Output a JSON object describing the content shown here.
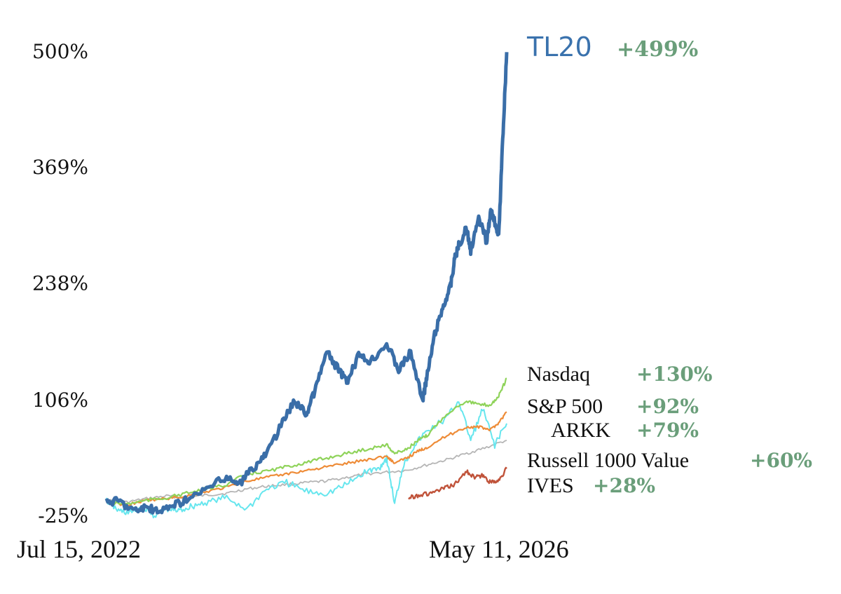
{
  "chart_data": {
    "type": "line",
    "x_start": "Jul 15, 2022",
    "x_end": "May 11, 2026",
    "y_ticks": [
      "500%",
      "369%",
      "238%",
      "106%",
      "-25%"
    ],
    "y_tick_values": [
      500,
      369,
      238,
      106,
      -25
    ],
    "ylim": [
      -25,
      500
    ],
    "grid": false,
    "legend": "right-end labels",
    "series": [
      {
        "name": "TL20",
        "return_label": "+499%",
        "color": "#3a6ea8",
        "x": [
          0,
          0.03,
          0.07,
          0.1,
          0.13,
          0.17,
          0.2,
          0.25,
          0.3,
          0.33,
          0.37,
          0.4,
          0.44,
          0.47,
          0.5,
          0.52,
          0.55,
          0.58,
          0.6,
          0.63,
          0.66,
          0.7,
          0.73,
          0.76,
          0.79,
          0.8,
          0.82,
          0.84,
          0.86,
          0.87,
          0.88,
          0.9,
          0.91,
          0.93,
          0.95,
          0.96,
          0.975,
          0.98,
          0.99,
          1.0
        ],
        "values": [
          -10,
          -8,
          -20,
          -15,
          -22,
          -12,
          -8,
          5,
          18,
          10,
          30,
          45,
          80,
          105,
          90,
          115,
          160,
          140,
          125,
          155,
          150,
          170,
          140,
          160,
          105,
          130,
          180,
          210,
          235,
          265,
          280,
          300,
          275,
          310,
          285,
          320,
          300,
          290,
          400,
          499
        ]
      },
      {
        "name": "Nasdaq",
        "return_label": "+130%",
        "color": "#8fd35a",
        "x": [
          0,
          0.05,
          0.1,
          0.15,
          0.2,
          0.25,
          0.3,
          0.35,
          0.4,
          0.45,
          0.5,
          0.55,
          0.6,
          0.65,
          0.7,
          0.72,
          0.75,
          0.78,
          0.8,
          0.85,
          0.9,
          0.93,
          0.96,
          0.98,
          1.0
        ],
        "values": [
          -10,
          -12,
          -8,
          -5,
          0,
          5,
          10,
          22,
          25,
          30,
          35,
          40,
          45,
          50,
          55,
          45,
          50,
          60,
          65,
          90,
          105,
          100,
          100,
          110,
          130
        ]
      },
      {
        "name": "S&P 500",
        "return_label": "+92%",
        "color": "#ee8c38",
        "x": [
          0,
          0.05,
          0.1,
          0.15,
          0.2,
          0.25,
          0.3,
          0.35,
          0.4,
          0.45,
          0.5,
          0.55,
          0.6,
          0.65,
          0.7,
          0.72,
          0.75,
          0.78,
          0.8,
          0.85,
          0.9,
          0.93,
          0.96,
          0.98,
          1.0
        ],
        "values": [
          -10,
          -13,
          -8,
          -6,
          -3,
          2,
          7,
          14,
          18,
          22,
          26,
          30,
          34,
          38,
          42,
          34,
          40,
          48,
          52,
          65,
          75,
          75,
          72,
          80,
          92
        ]
      },
      {
        "name": "ARKK",
        "return_label": "+79%",
        "color": "#66e6ee",
        "x": [
          0,
          0.03,
          0.06,
          0.09,
          0.12,
          0.15,
          0.18,
          0.21,
          0.25,
          0.3,
          0.35,
          0.4,
          0.45,
          0.5,
          0.55,
          0.6,
          0.65,
          0.68,
          0.7,
          0.72,
          0.74,
          0.77,
          0.8,
          0.85,
          0.88,
          0.91,
          0.94,
          0.97,
          1.0
        ],
        "values": [
          -8,
          -20,
          -22,
          -15,
          -25,
          -18,
          -20,
          -15,
          -10,
          -5,
          -18,
          5,
          12,
          2,
          0,
          10,
          25,
          28,
          40,
          -12,
          30,
          55,
          70,
          85,
          105,
          60,
          95,
          55,
          79
        ]
      },
      {
        "name": "Russell 1000 Value",
        "return_label": "+60%",
        "color": "#b5b5b5",
        "x": [
          0,
          0.05,
          0.1,
          0.15,
          0.2,
          0.25,
          0.3,
          0.35,
          0.4,
          0.45,
          0.5,
          0.55,
          0.6,
          0.65,
          0.7,
          0.75,
          0.8,
          0.85,
          0.9,
          0.95,
          1.0
        ],
        "values": [
          -8,
          -10,
          -6,
          -3,
          -5,
          -2,
          0,
          5,
          8,
          10,
          12,
          14,
          18,
          22,
          24,
          26,
          32,
          38,
          45,
          52,
          60
        ]
      },
      {
        "name": "IVES",
        "return_label": "+28%",
        "color": "#c0533a",
        "x": [
          0.755,
          0.78,
          0.81,
          0.84,
          0.87,
          0.9,
          0.92,
          0.94,
          0.96,
          0.98,
          1.0
        ],
        "values": [
          -5,
          -2,
          0,
          5,
          10,
          25,
          18,
          20,
          12,
          15,
          28
        ]
      }
    ]
  }
}
